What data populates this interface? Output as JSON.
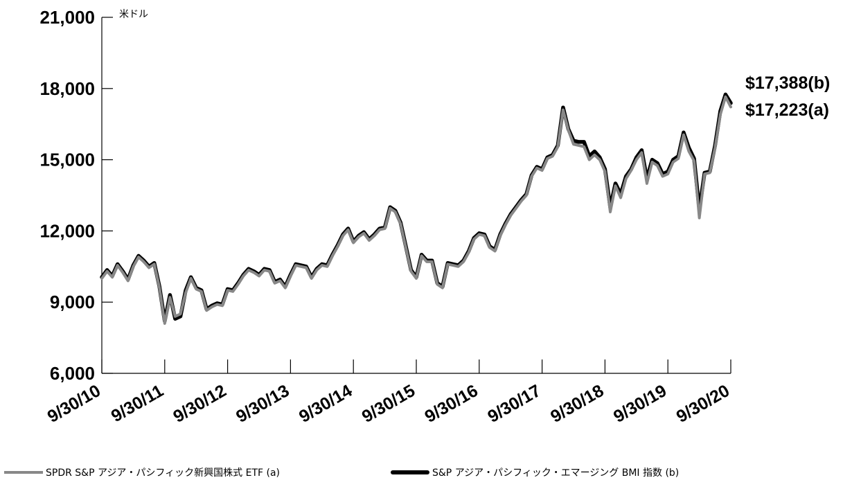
{
  "chart_data": {
    "type": "line",
    "unit_label": "米ドル",
    "ylim": [
      6000,
      21000
    ],
    "y_ticks": [
      {
        "value": 6000,
        "label": "6,000"
      },
      {
        "value": 9000,
        "label": "9,000"
      },
      {
        "value": 12000,
        "label": "12,000"
      },
      {
        "value": 15000,
        "label": "15,000"
      },
      {
        "value": 18000,
        "label": "18,000"
      },
      {
        "value": 21000,
        "label": "21,000"
      }
    ],
    "x_ticks": [
      "9/30/10",
      "9/30/11",
      "9/30/12",
      "9/30/13",
      "9/30/14",
      "9/30/15",
      "9/30/16",
      "9/30/17",
      "9/30/18",
      "9/30/19",
      "9/30/20"
    ],
    "grid": false,
    "legend_position": "bottom",
    "series": [
      {
        "name": "SPDR S&P アジア・パシフィック新興国株式 ETF (a)",
        "color": "#888888",
        "end_label": "$17,223(a)",
        "values": [
          10000,
          10300,
          10050,
          10550,
          10250,
          9900,
          10500,
          10900,
          10700,
          10450,
          10600,
          9600,
          8100,
          9200,
          8400,
          8500,
          9400,
          10000,
          9550,
          9450,
          8650,
          8800,
          8900,
          8850,
          9500,
          9450,
          9750,
          10100,
          10350,
          10250,
          10100,
          10350,
          10300,
          9800,
          9900,
          9600,
          10100,
          10550,
          10500,
          10450,
          10000,
          10350,
          10550,
          10500,
          10950,
          11350,
          11800,
          12050,
          11500,
          11750,
          11900,
          11600,
          11800,
          12050,
          12100,
          12950,
          12800,
          12300,
          11300,
          10300,
          10000,
          10950,
          10700,
          10700,
          9750,
          9600,
          10600,
          10550,
          10500,
          10700,
          11100,
          11650,
          11850,
          11800,
          11300,
          11150,
          11800,
          12250,
          12650,
          12950,
          13250,
          13500,
          14300,
          14650,
          14550,
          15050,
          15150,
          15550,
          17100,
          16250,
          15650,
          15600,
          15550,
          15000,
          15200,
          15000,
          14500,
          12800,
          13900,
          13400,
          14200,
          14550,
          15000,
          15300,
          14000,
          14900,
          14750,
          14300,
          14400,
          14900,
          15050,
          16050,
          15350,
          14950,
          12550,
          14400,
          14450,
          15500,
          16900,
          17650,
          17223
        ]
      },
      {
        "name": "S&P アジア・パシフィック・エマージング BMI 指数 (b)",
        "color": "#000000",
        "end_label": "$17,388(b)",
        "values": [
          10050,
          10350,
          10100,
          10600,
          10300,
          9950,
          10550,
          10950,
          10750,
          10500,
          10650,
          9650,
          8200,
          9300,
          8300,
          8400,
          9500,
          10050,
          9600,
          9500,
          8700,
          8850,
          8950,
          8900,
          9550,
          9500,
          9800,
          10150,
          10400,
          10300,
          10150,
          10400,
          10350,
          9850,
          9950,
          9650,
          10150,
          10600,
          10550,
          10500,
          10050,
          10400,
          10600,
          10550,
          11000,
          11400,
          11850,
          12100,
          11550,
          11800,
          11950,
          11650,
          11850,
          12100,
          12150,
          13000,
          12850,
          12350,
          11350,
          10350,
          10050,
          11000,
          10750,
          10750,
          9800,
          9650,
          10650,
          10600,
          10550,
          10750,
          11150,
          11700,
          11900,
          11850,
          11350,
          11200,
          11850,
          12300,
          12700,
          13000,
          13300,
          13550,
          14350,
          14700,
          14600,
          15100,
          15200,
          15600,
          17200,
          16300,
          15800,
          15750,
          15750,
          15150,
          15350,
          15100,
          14600,
          13000,
          14000,
          13550,
          14300,
          14600,
          15100,
          15400,
          14200,
          15000,
          14850,
          14400,
          14500,
          15000,
          15150,
          16150,
          15500,
          15050,
          12900,
          14450,
          14500,
          15600,
          17050,
          17750,
          17388
        ]
      }
    ]
  }
}
